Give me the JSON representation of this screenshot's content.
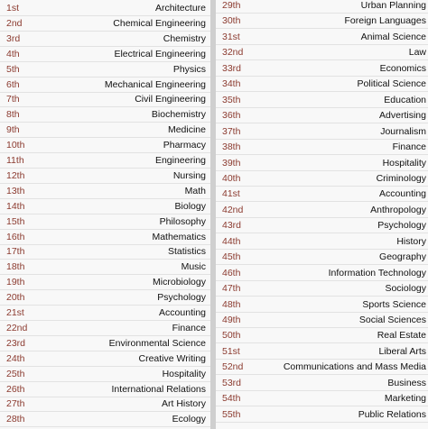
{
  "colors": {
    "rank": "#8b3a2f",
    "text": "#111111",
    "background": "#f8f8f8",
    "gutter": "#cfcfcf"
  },
  "left_column": [
    {
      "rank": "1st",
      "name": "Architecture"
    },
    {
      "rank": "2nd",
      "name": "Chemical Engineering"
    },
    {
      "rank": "3rd",
      "name": "Chemistry"
    },
    {
      "rank": "4th",
      "name": "Electrical Engineering"
    },
    {
      "rank": "5th",
      "name": "Physics"
    },
    {
      "rank": "6th",
      "name": "Mechanical Engineering"
    },
    {
      "rank": "7th",
      "name": "Civil Engineering"
    },
    {
      "rank": "8th",
      "name": "Biochemistry"
    },
    {
      "rank": "9th",
      "name": "Medicine"
    },
    {
      "rank": "10th",
      "name": "Pharmacy"
    },
    {
      "rank": "11th",
      "name": "Engineering"
    },
    {
      "rank": "12th",
      "name": "Nursing"
    },
    {
      "rank": "13th",
      "name": "Math"
    },
    {
      "rank": "14th",
      "name": "Biology"
    },
    {
      "rank": "15th",
      "name": "Philosophy"
    },
    {
      "rank": "16th",
      "name": "Mathematics"
    },
    {
      "rank": "17th",
      "name": "Statistics"
    },
    {
      "rank": "18th",
      "name": "Music"
    },
    {
      "rank": "19th",
      "name": "Microbiology"
    },
    {
      "rank": "20th",
      "name": "Psychology"
    },
    {
      "rank": "21st",
      "name": "Accounting"
    },
    {
      "rank": "22nd",
      "name": "Finance"
    },
    {
      "rank": "23rd",
      "name": "Environmental Science"
    },
    {
      "rank": "24th",
      "name": "Creative Writing"
    },
    {
      "rank": "25th",
      "name": "Hospitality"
    },
    {
      "rank": "26th",
      "name": "International Relations"
    },
    {
      "rank": "27th",
      "name": "Art History"
    },
    {
      "rank": "28th",
      "name": "Ecology"
    }
  ],
  "right_column": [
    {
      "rank": "29th",
      "name": "Urban Planning"
    },
    {
      "rank": "30th",
      "name": "Foreign Languages"
    },
    {
      "rank": "31st",
      "name": "Animal Science"
    },
    {
      "rank": "32nd",
      "name": "Law"
    },
    {
      "rank": "33rd",
      "name": "Economics"
    },
    {
      "rank": "34th",
      "name": "Political Science"
    },
    {
      "rank": "35th",
      "name": "Education"
    },
    {
      "rank": "36th",
      "name": "Advertising"
    },
    {
      "rank": "37th",
      "name": "Journalism"
    },
    {
      "rank": "38th",
      "name": "Finance"
    },
    {
      "rank": "39th",
      "name": "Hospitality"
    },
    {
      "rank": "40th",
      "name": "Criminology"
    },
    {
      "rank": "41st",
      "name": "Accounting"
    },
    {
      "rank": "42nd",
      "name": "Anthropology"
    },
    {
      "rank": "43rd",
      "name": "Psychology"
    },
    {
      "rank": "44th",
      "name": "History"
    },
    {
      "rank": "45th",
      "name": "Geography"
    },
    {
      "rank": "46th",
      "name": "Information Technology"
    },
    {
      "rank": "47th",
      "name": "Sociology"
    },
    {
      "rank": "48th",
      "name": "Sports Science"
    },
    {
      "rank": "49th",
      "name": "Social Sciences"
    },
    {
      "rank": "50th",
      "name": "Real Estate"
    },
    {
      "rank": "51st",
      "name": "Liberal Arts"
    },
    {
      "rank": "52nd",
      "name": "Communications and Mass Media"
    },
    {
      "rank": "53rd",
      "name": "Business"
    },
    {
      "rank": "54th",
      "name": "Marketing"
    },
    {
      "rank": "55th",
      "name": "Public Relations"
    }
  ]
}
